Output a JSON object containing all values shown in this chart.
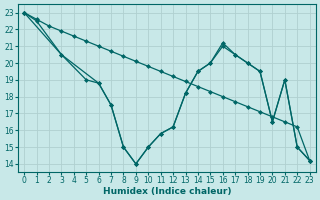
{
  "xlabel": "Humidex (Indice chaleur)",
  "background_color": "#c8e8e8",
  "grid_color": "#b0d0d0",
  "line_color": "#006666",
  "xlim": [
    -0.5,
    23.5
  ],
  "ylim": [
    13.5,
    23.5
  ],
  "yticks": [
    14,
    15,
    16,
    17,
    18,
    19,
    20,
    21,
    22,
    23
  ],
  "xticks": [
    0,
    1,
    2,
    3,
    4,
    5,
    6,
    7,
    8,
    9,
    10,
    11,
    12,
    13,
    14,
    15,
    16,
    17,
    18,
    19,
    20,
    21,
    22,
    23
  ],
  "lineA_x": [
    0,
    1,
    2,
    3,
    4,
    5,
    6,
    7,
    8,
    9,
    10,
    11,
    12,
    13,
    14,
    15,
    16,
    17,
    18,
    19,
    20,
    21,
    22,
    23
  ],
  "lineA_y": [
    23,
    22.6,
    22.2,
    21.9,
    21.6,
    21.3,
    21.0,
    20.7,
    20.4,
    20.1,
    19.8,
    19.5,
    19.2,
    18.9,
    18.6,
    18.3,
    18.0,
    17.7,
    17.4,
    17.1,
    16.8,
    16.5,
    16.2,
    14.2
  ],
  "lineB_x": [
    0,
    1,
    3,
    5,
    6,
    7,
    8,
    9,
    10,
    11,
    12,
    13,
    14,
    15,
    16,
    17,
    18,
    19,
    20,
    21,
    22,
    23
  ],
  "lineB_y": [
    23,
    22.5,
    20.5,
    19.0,
    18.8,
    17.5,
    15.0,
    14.0,
    15.0,
    15.8,
    16.2,
    18.2,
    19.5,
    20.0,
    21.0,
    20.5,
    20.0,
    19.5,
    16.5,
    19.0,
    15.0,
    14.2
  ],
  "lineC_x": [
    0,
    3,
    6,
    7,
    8,
    9,
    10,
    11,
    12,
    13,
    14,
    15,
    16,
    17,
    18,
    19,
    20,
    21,
    22,
    23
  ],
  "lineC_y": [
    23,
    20.5,
    18.8,
    17.5,
    15.0,
    14.0,
    15.0,
    15.8,
    16.2,
    18.2,
    19.5,
    20.0,
    21.2,
    20.5,
    20.0,
    19.5,
    16.5,
    19.0,
    15.0,
    14.2
  ]
}
